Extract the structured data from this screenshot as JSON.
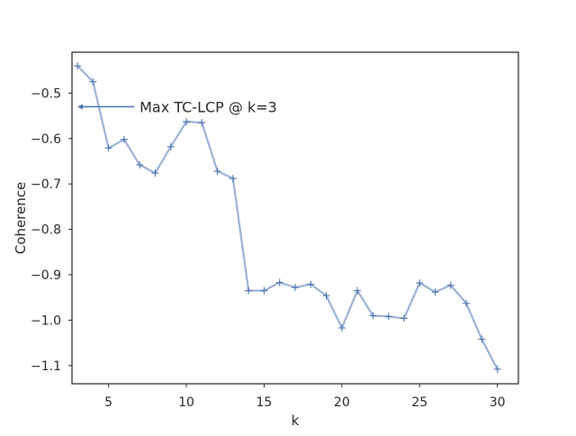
{
  "chart_data": {
    "type": "line",
    "title": "",
    "xlabel": "k",
    "ylabel": "Coherence",
    "xlim": [
      2.65,
      31.35
    ],
    "ylim": [
      -1.14,
      -0.41
    ],
    "xticks": [
      5,
      10,
      15,
      20,
      25,
      30
    ],
    "yticks": [
      -0.5,
      -0.6,
      -0.7,
      -0.8,
      -0.9,
      -1.0,
      -1.1
    ],
    "xtick_labels": [
      "5",
      "10",
      "15",
      "20",
      "25",
      "30"
    ],
    "ytick_labels": [
      "−0.5",
      "−0.6",
      "−0.7",
      "−0.8",
      "−0.9",
      "−1.0",
      "−1.1"
    ],
    "grid": false,
    "legend": "none",
    "line_color": "#4c72b0",
    "series": [
      {
        "marker": "+",
        "x": [
          3,
          4,
          5,
          6,
          7,
          8,
          9,
          10,
          11,
          12,
          13,
          14,
          15,
          16,
          17,
          18,
          19,
          20,
          21,
          22,
          23,
          24,
          25,
          26,
          27,
          28,
          29,
          30
        ],
        "y": [
          -0.44,
          -0.475,
          -0.621,
          -0.602,
          -0.658,
          -0.676,
          -0.618,
          -0.563,
          -0.565,
          -0.672,
          -0.688,
          -0.935,
          -0.935,
          -0.917,
          -0.928,
          -0.921,
          -0.946,
          -1.017,
          -0.935,
          -0.99,
          -0.992,
          -0.996,
          -0.918,
          -0.938,
          -0.923,
          -0.963,
          -1.042,
          -1.108
        ]
      }
    ],
    "annotation": {
      "text": "Max TC-LCP @ k=3",
      "arrow_start": [
        6.65,
        -0.53
      ],
      "arrow_end": [
        3.0,
        -0.53
      ]
    }
  }
}
